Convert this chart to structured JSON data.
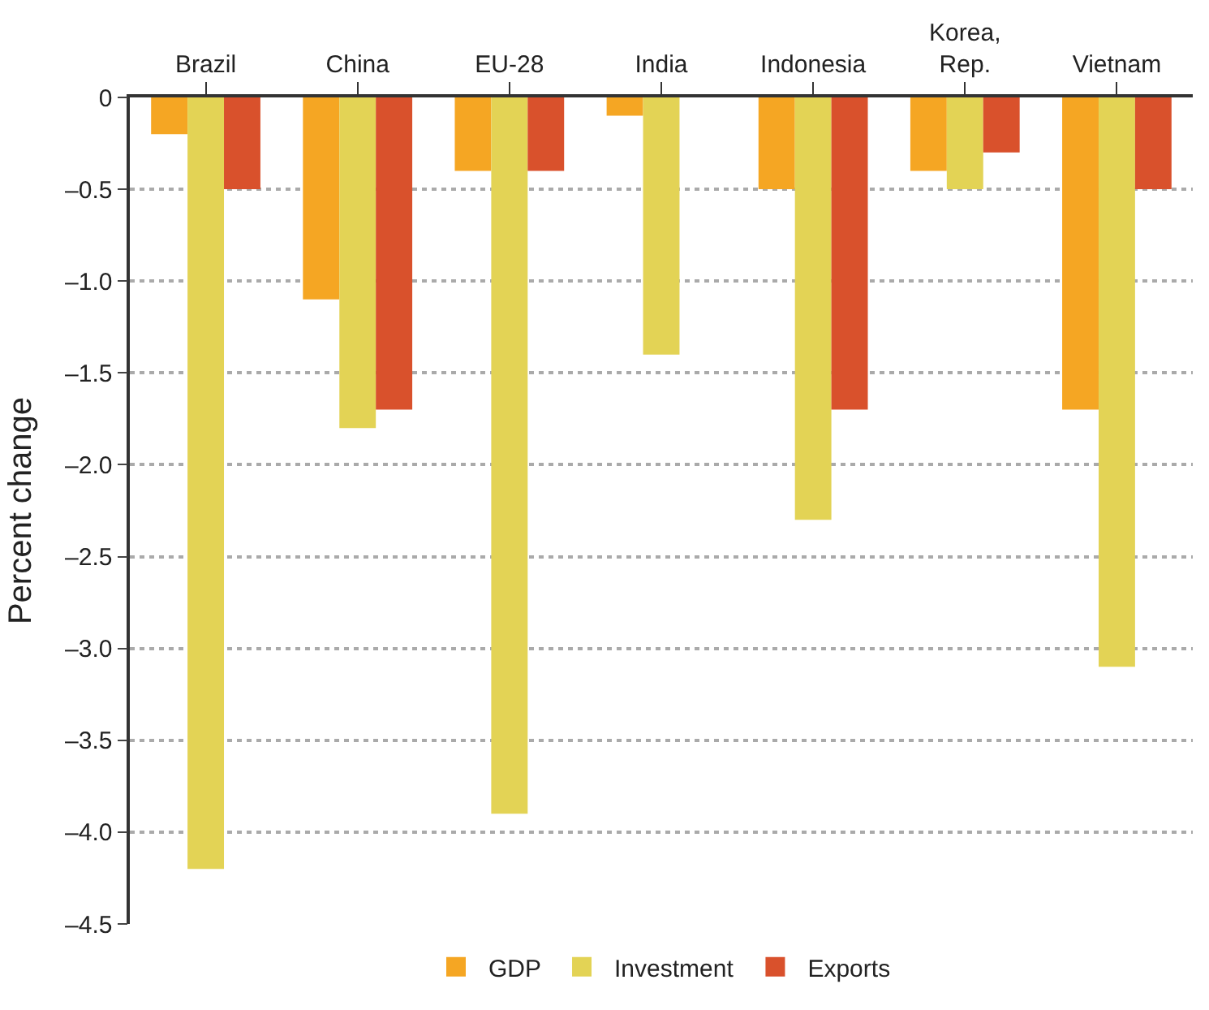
{
  "chart_data": {
    "type": "bar",
    "ylabel": "Percent change",
    "categories": [
      "Brazil",
      "China",
      "EU-28",
      "India",
      "Indonesia",
      "Korea,\nRep.",
      "Vietnam"
    ],
    "series": [
      {
        "name": "GDP",
        "color": "#f5a623",
        "values": [
          -0.2,
          -1.1,
          -0.4,
          -0.1,
          -0.5,
          -0.4,
          -1.7
        ]
      },
      {
        "name": "Investment",
        "color": "#e3d355",
        "values": [
          -4.2,
          -1.8,
          -3.9,
          -1.4,
          -2.3,
          -0.5,
          -3.1
        ]
      },
      {
        "name": "Exports",
        "color": "#d9512c",
        "values": [
          -0.5,
          -1.7,
          -0.4,
          null,
          -1.7,
          -0.3,
          -0.5
        ]
      }
    ],
    "ylim": [
      -4.5,
      0
    ],
    "yticks": [
      0,
      {
        "value": -0.5,
        "label": "–0.5"
      },
      {
        "value": -1.0,
        "label": "–1.0"
      },
      {
        "value": -1.5,
        "label": "–1.5"
      },
      {
        "value": -2.0,
        "label": "–2.0"
      },
      {
        "value": -2.5,
        "label": "–2.5"
      },
      {
        "value": -3.0,
        "label": "–3.0"
      },
      {
        "value": -3.5,
        "label": "–3.5"
      },
      {
        "value": -4.0,
        "label": "–4.0"
      },
      {
        "value": -4.5,
        "label": "–4.5"
      }
    ],
    "grid": "y",
    "legend": "bottom"
  }
}
